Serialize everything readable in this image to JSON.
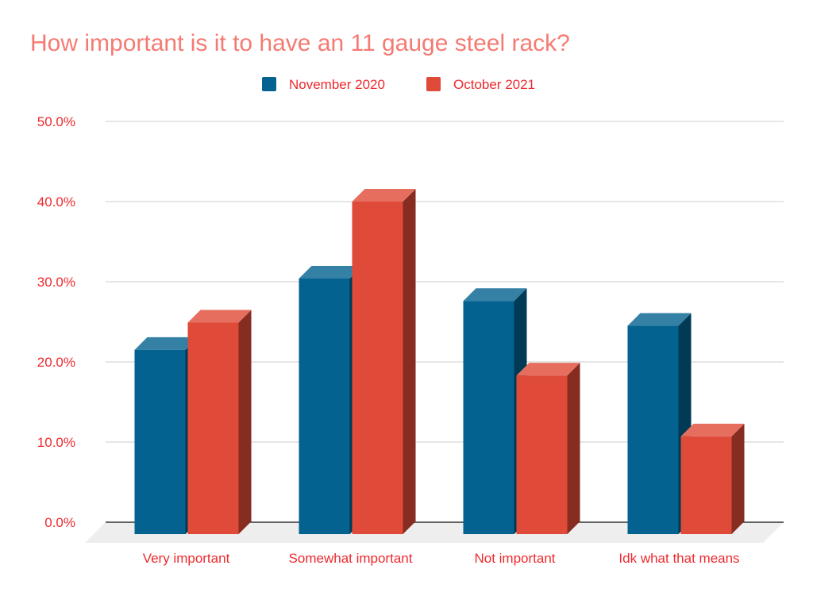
{
  "chart_data": {
    "type": "bar",
    "title": "How important is it to have an 11 gauge steel rack?",
    "categories": [
      "Very important",
      "Somewhat important",
      "Not important",
      "Idk what that means"
    ],
    "series": [
      {
        "name": "November 2020",
        "color": "#03628f",
        "values": [
          21.5,
          30.4,
          27.6,
          24.5
        ]
      },
      {
        "name": "October 2021",
        "color": "#e04a38",
        "values": [
          24.9,
          40.0,
          18.3,
          10.7
        ]
      }
    ],
    "yticks": [
      "0.0%",
      "10.0%",
      "20.0%",
      "30.0%",
      "40.0%",
      "50.0%"
    ],
    "ylim": [
      0,
      50
    ],
    "xlabel": "",
    "ylabel": "",
    "grid": true,
    "legend": "top-center",
    "style": "3d-bar"
  }
}
